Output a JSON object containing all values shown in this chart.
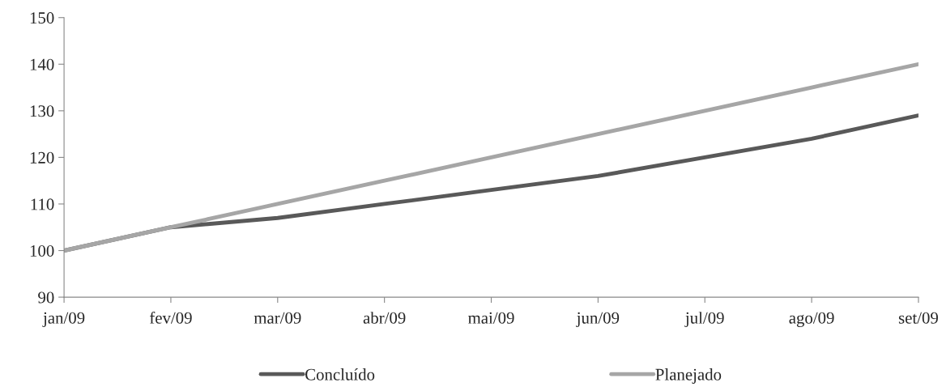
{
  "chart_data": {
    "type": "line",
    "categories": [
      "jan/09",
      "fev/09",
      "mar/09",
      "abr/09",
      "mai/09",
      "jun/09",
      "jul/09",
      "ago/09",
      "set/09"
    ],
    "series": [
      {
        "name": "Concluído",
        "color": "#595959",
        "values": [
          100,
          105,
          107,
          110,
          113,
          116,
          120,
          124,
          129
        ]
      },
      {
        "name": "Planejado",
        "color": "#a6a6a6",
        "values": [
          100,
          105,
          110,
          115,
          120,
          125,
          130,
          135,
          140
        ]
      }
    ],
    "ylim": [
      90,
      150
    ],
    "yticks": [
      90,
      100,
      110,
      120,
      130,
      140,
      150
    ],
    "grid": false,
    "legend": "bottom",
    "marker": "none",
    "line_style": "solid"
  }
}
